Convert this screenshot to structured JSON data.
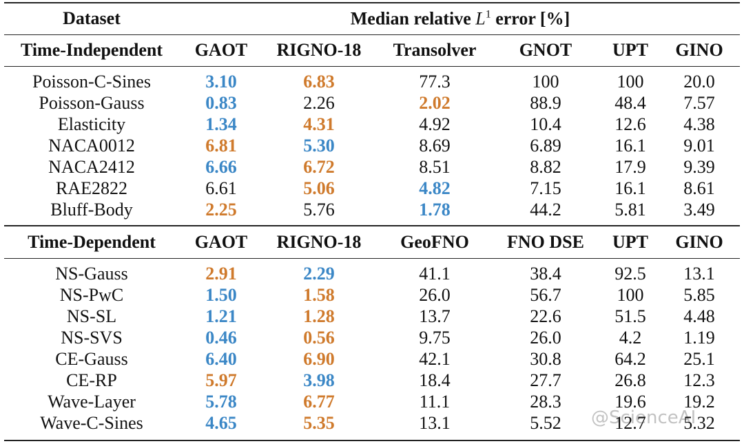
{
  "header": {
    "dataset": "Dataset",
    "error_header": [
      "Median relative",
      "L",
      "1",
      "error [%]"
    ]
  },
  "watermark": "@ScienceAI",
  "highlight_colors": {
    "blue": "#3b87c6",
    "orange": "#cf7a2c"
  },
  "sections": [
    {
      "columns": [
        "Time-Independent",
        "GAOT",
        "RIGNO-18",
        "Transolver",
        "GNOT",
        "UPT",
        "GINO"
      ],
      "rows": [
        {
          "dataset": "Poisson-C-Sines",
          "values": [
            "3.10",
            "6.83",
            "77.3",
            "100",
            "100",
            "20.0"
          ],
          "colors": [
            "blue",
            "orange",
            null,
            null,
            null,
            null
          ]
        },
        {
          "dataset": "Poisson-Gauss",
          "values": [
            "0.83",
            "2.26",
            "2.02",
            "88.9",
            "48.4",
            "7.57"
          ],
          "colors": [
            "blue",
            null,
            "orange",
            null,
            null,
            null
          ]
        },
        {
          "dataset": "Elasticity",
          "values": [
            "1.34",
            "4.31",
            "4.92",
            "10.4",
            "12.6",
            "4.38"
          ],
          "colors": [
            "blue",
            "orange",
            null,
            null,
            null,
            null
          ]
        },
        {
          "dataset": "NACA0012",
          "values": [
            "6.81",
            "5.30",
            "8.69",
            "6.89",
            "16.1",
            "9.01"
          ],
          "colors": [
            "orange",
            "blue",
            null,
            null,
            null,
            null
          ]
        },
        {
          "dataset": "NACA2412",
          "values": [
            "6.66",
            "6.72",
            "8.51",
            "8.82",
            "17.9",
            "9.39"
          ],
          "colors": [
            "blue",
            "orange",
            null,
            null,
            null,
            null
          ]
        },
        {
          "dataset": "RAE2822",
          "values": [
            "6.61",
            "5.06",
            "4.82",
            "7.15",
            "16.1",
            "8.61"
          ],
          "colors": [
            null,
            "orange",
            "blue",
            null,
            null,
            null
          ]
        },
        {
          "dataset": "Bluff-Body",
          "values": [
            "2.25",
            "5.76",
            "1.78",
            "44.2",
            "5.81",
            "3.49"
          ],
          "colors": [
            "orange",
            null,
            "blue",
            null,
            null,
            null
          ]
        }
      ]
    },
    {
      "columns": [
        "Time-Dependent",
        "GAOT",
        "RIGNO-18",
        "GeoFNO",
        "FNO DSE",
        "UPT",
        "GINO"
      ],
      "rows": [
        {
          "dataset": "NS-Gauss",
          "values": [
            "2.91",
            "2.29",
            "41.1",
            "38.4",
            "92.5",
            "13.1"
          ],
          "colors": [
            "orange",
            "blue",
            null,
            null,
            null,
            null
          ]
        },
        {
          "dataset": "NS-PwC",
          "values": [
            "1.50",
            "1.58",
            "26.0",
            "56.7",
            "100",
            "5.85"
          ],
          "colors": [
            "blue",
            "orange",
            null,
            null,
            null,
            null
          ]
        },
        {
          "dataset": "NS-SL",
          "values": [
            "1.21",
            "1.28",
            "13.7",
            "22.6",
            "51.5",
            "4.48"
          ],
          "colors": [
            "blue",
            "orange",
            null,
            null,
            null,
            null
          ]
        },
        {
          "dataset": "NS-SVS",
          "values": [
            "0.46",
            "0.56",
            "9.75",
            "26.0",
            "4.2",
            "1.19"
          ],
          "colors": [
            "blue",
            "orange",
            null,
            null,
            null,
            null
          ]
        },
        {
          "dataset": "CE-Gauss",
          "values": [
            "6.40",
            "6.90",
            "42.1",
            "30.8",
            "64.2",
            "25.1"
          ],
          "colors": [
            "blue",
            "orange",
            null,
            null,
            null,
            null
          ]
        },
        {
          "dataset": "CE-RP",
          "values": [
            "5.97",
            "3.98",
            "18.4",
            "27.7",
            "26.8",
            "12.3"
          ],
          "colors": [
            "orange",
            "blue",
            null,
            null,
            null,
            null
          ]
        },
        {
          "dataset": "Wave-Layer",
          "values": [
            "5.78",
            "6.77",
            "11.1",
            "28.3",
            "19.6",
            "19.2"
          ],
          "colors": [
            "blue",
            "orange",
            null,
            null,
            null,
            null
          ]
        },
        {
          "dataset": "Wave-C-Sines",
          "values": [
            "4.65",
            "5.35",
            "13.1",
            "5.52",
            "12.7",
            "5.32"
          ],
          "colors": [
            "blue",
            "orange",
            null,
            null,
            null,
            null
          ]
        }
      ]
    }
  ]
}
